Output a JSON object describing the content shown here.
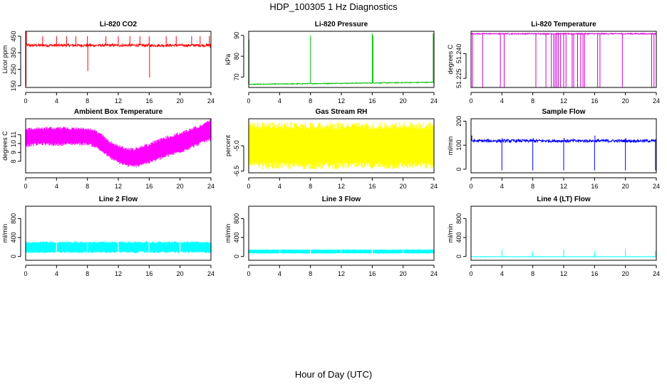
{
  "figure": {
    "title": "HDP_100305  1 Hz Diagnostics",
    "xlabel": "Hour of Day (UTC)"
  },
  "chart_data": [
    {
      "type": "line",
      "title": "Li-820 CO2",
      "ylabel": "Licor ppm",
      "color": "#ff0000",
      "xlim": [
        0,
        24
      ],
      "ylim": [
        140,
        480
      ],
      "xticks": [
        0,
        4,
        8,
        12,
        16,
        20,
        24
      ],
      "yticks": [
        150,
        250,
        350,
        450
      ],
      "baseline": 395,
      "noise": 8,
      "events": [
        {
          "x": 0.05,
          "y": 150
        },
        {
          "x": 0.1,
          "y": 480
        },
        {
          "x": 2.2,
          "y": 450
        },
        {
          "x": 4.0,
          "y": 450
        },
        {
          "x": 5.3,
          "y": 450
        },
        {
          "x": 6.5,
          "y": 450
        },
        {
          "x": 8.0,
          "y": 450
        },
        {
          "x": 8.05,
          "y": 240
        },
        {
          "x": 10.4,
          "y": 450
        },
        {
          "x": 12.0,
          "y": 450
        },
        {
          "x": 13.5,
          "y": 450
        },
        {
          "x": 14.8,
          "y": 450
        },
        {
          "x": 16.0,
          "y": 450
        },
        {
          "x": 16.05,
          "y": 200
        },
        {
          "x": 18.2,
          "y": 450
        },
        {
          "x": 19.5,
          "y": 450
        },
        {
          "x": 21.5,
          "y": 450
        },
        {
          "x": 22.6,
          "y": 450
        },
        {
          "x": 23.8,
          "y": 450
        },
        {
          "x": 23.9,
          "y": 380
        }
      ]
    },
    {
      "type": "line",
      "title": "Li-820 Pressure",
      "ylabel": "kPa",
      "color": "#00c000",
      "xlim": [
        0,
        24
      ],
      "ylim": [
        65,
        92
      ],
      "xticks": [
        0,
        4,
        8,
        12,
        16,
        20,
        24
      ],
      "yticks": [
        70,
        80,
        90
      ],
      "baseline": 66.5,
      "baseline_end": 67.5,
      "noise": 0.2,
      "events": [
        {
          "x": 0.05,
          "y": 88
        },
        {
          "x": 8.0,
          "y": 90
        },
        {
          "x": 16.0,
          "y": 91
        },
        {
          "x": 16.1,
          "y": 90
        },
        {
          "x": 23.9,
          "y": 91
        }
      ]
    },
    {
      "type": "line",
      "title": "Li-820 Temperature",
      "ylabel": "degrees C",
      "color": "#d000d0",
      "xlim": [
        0,
        24
      ],
      "ylim": [
        51.2195,
        51.2535
      ],
      "xticks": [
        0,
        4,
        8,
        12,
        16,
        20,
        24
      ],
      "yticks": [
        51.225,
        51.24
      ],
      "yticklabels": [
        "51.225",
        "51.240"
      ],
      "baseline": 51.252,
      "noise": 0.0003,
      "events": [
        {
          "x": 0.2,
          "y": 51.2195
        },
        {
          "x": 1.5,
          "y": 51.2195
        },
        {
          "x": 3.8,
          "y": 51.2195
        },
        {
          "x": 4.3,
          "y": 51.2195
        },
        {
          "x": 8.4,
          "y": 51.2195
        },
        {
          "x": 9.7,
          "y": 51.2195
        },
        {
          "x": 10.4,
          "y": 51.2195
        },
        {
          "x": 10.7,
          "y": 51.2195
        },
        {
          "x": 10.9,
          "y": 51.2195
        },
        {
          "x": 11.1,
          "y": 51.2195
        },
        {
          "x": 11.3,
          "y": 51.2195
        },
        {
          "x": 11.6,
          "y": 51.2195
        },
        {
          "x": 12.0,
          "y": 51.2195
        },
        {
          "x": 12.3,
          "y": 51.2195
        },
        {
          "x": 13.1,
          "y": 51.2195
        },
        {
          "x": 13.3,
          "y": 51.2195
        },
        {
          "x": 13.8,
          "y": 51.2195
        },
        {
          "x": 14.2,
          "y": 51.2195
        },
        {
          "x": 14.5,
          "y": 51.2195
        },
        {
          "x": 14.7,
          "y": 51.2195
        },
        {
          "x": 16.4,
          "y": 51.2195
        },
        {
          "x": 16.7,
          "y": 51.2195
        },
        {
          "x": 19.6,
          "y": 51.2195
        },
        {
          "x": 23.4,
          "y": 51.2195
        },
        {
          "x": 23.7,
          "y": 51.2195
        }
      ]
    },
    {
      "type": "area",
      "title": "Ambient Box Temperature",
      "ylabel": "degrees C",
      "color": "#ff00ff",
      "xlim": [
        0,
        24
      ],
      "ylim": [
        6.7,
        12.8
      ],
      "xticks": [
        0,
        4,
        8,
        12,
        16,
        20,
        24
      ],
      "yticks": [
        8,
        9,
        10,
        11
      ],
      "x": [
        0,
        2,
        4,
        6,
        8,
        9,
        10,
        11,
        12,
        13,
        14,
        15,
        16,
        18,
        20,
        22,
        23,
        24
      ],
      "low": [
        9.6,
        9.8,
        9.7,
        9.8,
        9.8,
        9.5,
        8.9,
        8.2,
        7.7,
        7.4,
        7.2,
        7.5,
        7.7,
        8.3,
        8.9,
        9.6,
        10.0,
        10.3
      ],
      "high": [
        11.8,
        11.9,
        11.9,
        11.9,
        11.8,
        11.6,
        11.0,
        10.3,
        9.9,
        9.6,
        9.5,
        9.8,
        10.1,
        10.8,
        11.3,
        12.0,
        12.3,
        12.8
      ]
    },
    {
      "type": "area",
      "title": "Gas Stream RH",
      "ylabel": "percent",
      "color": "#ffff00",
      "xlim": [
        0,
        24
      ],
      "ylim": [
        -6.6,
        -3.4
      ],
      "xticks": [
        0,
        4,
        8,
        12,
        16,
        20,
        24
      ],
      "yticks": [
        -6.5,
        -5.0
      ],
      "yticklabels": [
        "-6.5",
        "-5.0"
      ],
      "x": [
        0,
        24
      ],
      "low": [
        -6.4,
        -6.4
      ],
      "high": [
        -3.6,
        -3.6
      ]
    },
    {
      "type": "line",
      "title": "Sample Flow",
      "ylabel": "ml/min",
      "color": "#0000ff",
      "xlim": [
        0,
        24
      ],
      "ylim": [
        -15,
        210
      ],
      "xticks": [
        0,
        4,
        8,
        12,
        16,
        20,
        24
      ],
      "yticks": [
        0,
        100,
        200
      ],
      "baseline": 118,
      "noise": 6,
      "events": [
        {
          "x": 0.1,
          "y": 140
        },
        {
          "x": 4.0,
          "y": -5
        },
        {
          "x": 4.05,
          "y": 130
        },
        {
          "x": 8.0,
          "y": -5
        },
        {
          "x": 8.05,
          "y": 130
        },
        {
          "x": 12.0,
          "y": -5
        },
        {
          "x": 12.05,
          "y": 130
        },
        {
          "x": 16.0,
          "y": -5
        },
        {
          "x": 16.05,
          "y": 140
        },
        {
          "x": 20.0,
          "y": -5
        },
        {
          "x": 20.05,
          "y": 130
        },
        {
          "x": 23.9,
          "y": -5
        }
      ]
    },
    {
      "type": "area",
      "title": "Line 2 Flow",
      "ylabel": "ml/min",
      "color": "#00ffff",
      "xlim": [
        0,
        24
      ],
      "ylim": [
        -80,
        1060
      ],
      "xticks": [
        0,
        4,
        8,
        12,
        16,
        20,
        24
      ],
      "yticks": [
        0,
        400,
        800
      ],
      "x": [
        0,
        24
      ],
      "low": [
        70,
        70
      ],
      "high": [
        320,
        320
      ],
      "gaps": [
        4.0,
        8.0,
        12.0,
        16.0,
        20.0
      ]
    },
    {
      "type": "area",
      "title": "Line 3 Flow",
      "ylabel": "ml/min",
      "color": "#00ffff",
      "xlim": [
        0,
        24
      ],
      "ylim": [
        -80,
        1060
      ],
      "xticks": [
        0,
        4,
        8,
        12,
        16,
        20,
        24
      ],
      "yticks": [
        0,
        400,
        800
      ],
      "x": [
        0,
        24
      ],
      "low": [
        60,
        60
      ],
      "high": [
        150,
        150
      ],
      "gaps": [
        4.0,
        8.0,
        12.0,
        16.0,
        20.0
      ]
    },
    {
      "type": "line",
      "title": "Line 4 (LT) Flow",
      "ylabel": "ml/min",
      "color": "#00ffff",
      "xlim": [
        0,
        24
      ],
      "ylim": [
        -80,
        1060
      ],
      "xticks": [
        0,
        4,
        8,
        12,
        16,
        20,
        24
      ],
      "yticks": [
        0,
        400,
        800
      ],
      "baseline": -5,
      "noise": 4,
      "events": [
        {
          "x": 4.0,
          "y": 150
        },
        {
          "x": 8.0,
          "y": 110
        },
        {
          "x": 12.0,
          "y": 150
        },
        {
          "x": 16.0,
          "y": 110
        },
        {
          "x": 20.0,
          "y": 150
        },
        {
          "x": 23.9,
          "y": 110
        }
      ]
    }
  ]
}
